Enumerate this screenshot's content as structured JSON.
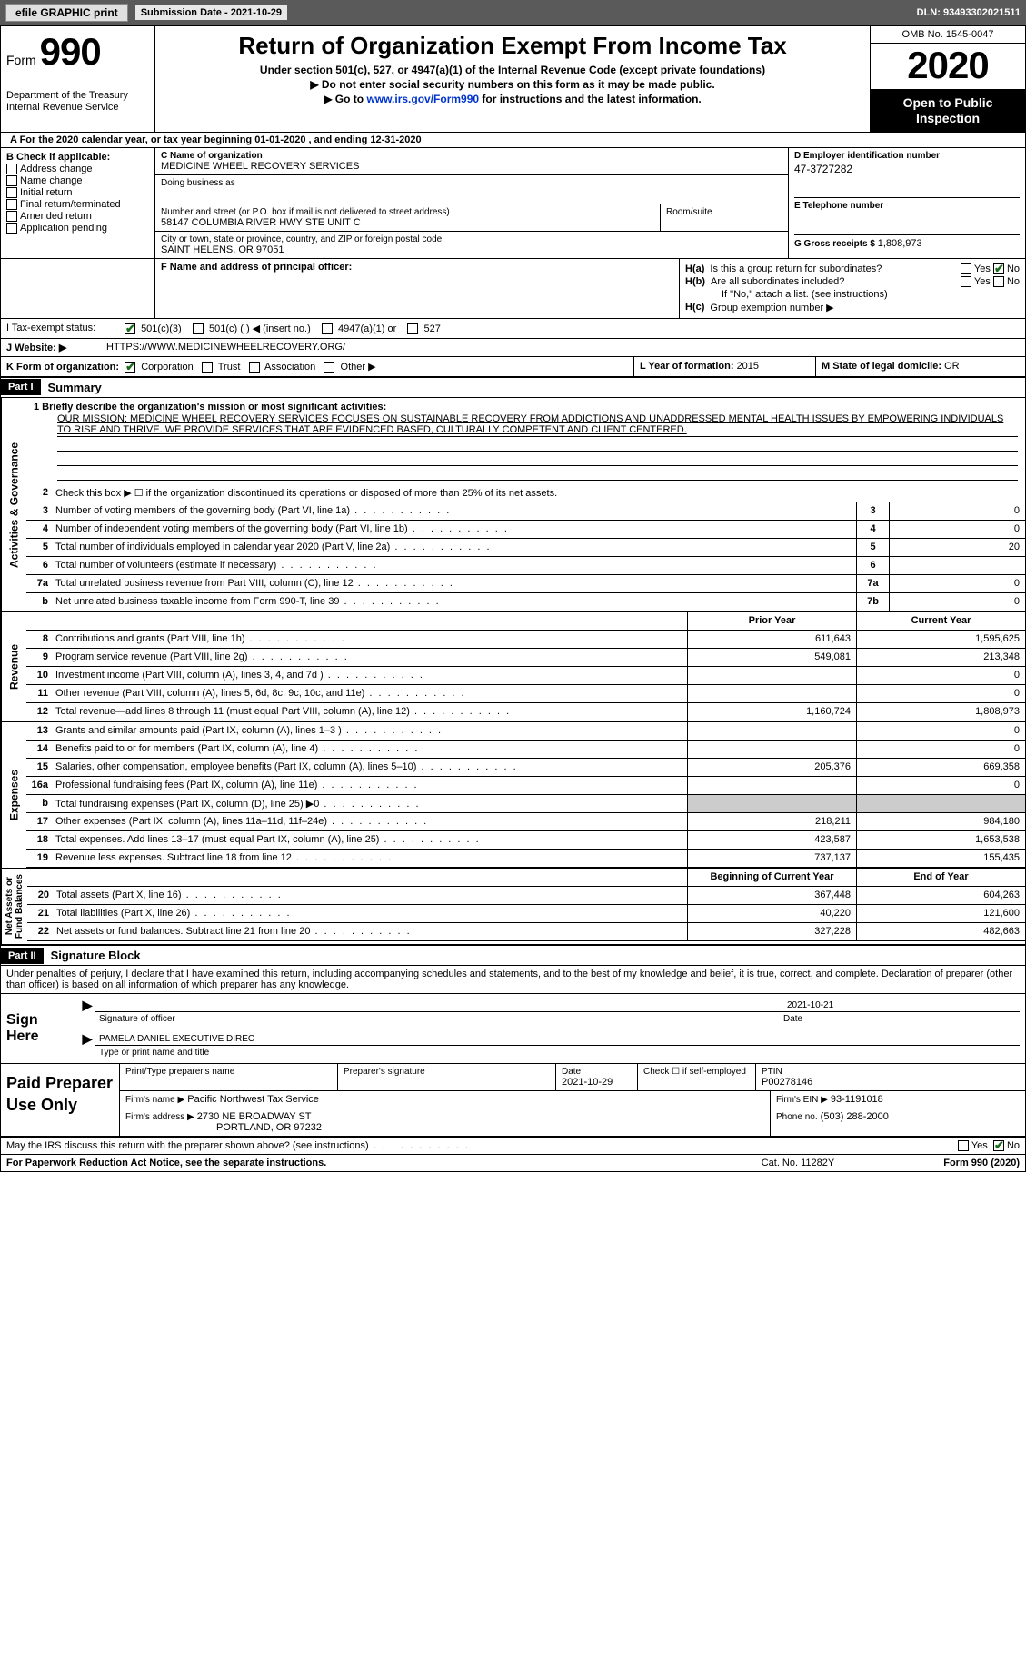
{
  "topbar": {
    "efile_btn": "efile GRAPHIC print",
    "sub_date_label": "Submission Date - ",
    "sub_date": "2021-10-29",
    "dln_label": "DLN: ",
    "dln": "93493302021511"
  },
  "header": {
    "form_word": "Form",
    "form_num": "990",
    "dept": "Department of the Treasury\nInternal Revenue Service",
    "title": "Return of Organization Exempt From Income Tax",
    "sub1": "Under section 501(c), 527, or 4947(a)(1) of the Internal Revenue Code (except private foundations)",
    "sub2": "▶ Do not enter social security numbers on this form as it may be made public.",
    "sub3_pre": "▶ Go to ",
    "sub3_link": "www.irs.gov/Form990",
    "sub3_post": " for instructions and the latest information.",
    "omb": "OMB No. 1545-0047",
    "year": "2020",
    "open": "Open to Public Inspection"
  },
  "lineA": "A For the 2020 calendar year, or tax year beginning 01-01-2020   , and ending 12-31-2020",
  "boxB": {
    "title": "B Check if applicable:",
    "items": [
      "Address change",
      "Name change",
      "Initial return",
      "Final return/terminated",
      "Amended return",
      "Application pending"
    ]
  },
  "boxC": {
    "name_lbl": "C Name of organization",
    "name": "MEDICINE WHEEL RECOVERY SERVICES",
    "dba_lbl": "Doing business as",
    "dba": "",
    "addr_lbl": "Number and street (or P.O. box if mail is not delivered to street address)",
    "addr": "58147 COLUMBIA RIVER HWY STE UNIT C",
    "suite_lbl": "Room/suite",
    "city_lbl": "City or town, state or province, country, and ZIP or foreign postal code",
    "city": "SAINT HELENS, OR   97051"
  },
  "boxD": {
    "lbl": "D Employer identification number",
    "val": "47-3727282"
  },
  "boxE": {
    "lbl": "E Telephone number",
    "val": ""
  },
  "boxG": {
    "lbl": "G Gross receipts $ ",
    "val": "1,808,973"
  },
  "boxF": {
    "lbl": "F  Name and address of principal officer:",
    "val": ""
  },
  "boxH": {
    "a": "Is this a group return for subordinates?",
    "b": "Are all subordinates included?",
    "b_note": "If \"No,\" attach a list. (see instructions)",
    "c": "Group exemption number ▶",
    "ha": "H(a)",
    "hb": "H(b)",
    "hc": "H(c)",
    "yes": "Yes",
    "no": "No"
  },
  "boxI": {
    "lbl": "I  Tax-exempt status:",
    "opts": [
      "501(c)(3)",
      "501(c) (  ) ◀ (insert no.)",
      "4947(a)(1) or",
      "527"
    ]
  },
  "boxJ": {
    "lbl": "J  Website: ▶",
    "val": "HTTPS://WWW.MEDICINEWHEELRECOVERY.ORG/"
  },
  "boxK": {
    "lbl": "K Form of organization:",
    "opts": [
      "Corporation",
      "Trust",
      "Association",
      "Other ▶"
    ]
  },
  "boxL": {
    "lbl": "L Year of formation: ",
    "val": "2015"
  },
  "boxM": {
    "lbl": "M State of legal domicile: ",
    "val": "OR"
  },
  "part1": {
    "hdr": "Part I",
    "title": "Summary"
  },
  "mission": {
    "q": "1  Briefly describe the organization's mission or most significant activities:",
    "text": "OUR MISSION: MEDICINE WHEEL RECOVERY SERVICES FOCUSES ON SUSTAINABLE RECOVERY FROM ADDICTIONS AND UNADDRESSED MENTAL HEALTH ISSUES BY EMPOWERING INDIVIDUALS TO RISE AND THRIVE. WE PROVIDE SERVICES THAT ARE EVIDENCED BASED, CULTURALLY COMPETENT AND CLIENT CENTERED."
  },
  "gov_lines": [
    {
      "n": "2",
      "t": "Check this box ▶ ☐  if the organization discontinued its operations or disposed of more than 25% of its net assets.",
      "box": "",
      "v": ""
    },
    {
      "n": "3",
      "t": "Number of voting members of the governing body (Part VI, line 1a)",
      "box": "3",
      "v": "0"
    },
    {
      "n": "4",
      "t": "Number of independent voting members of the governing body (Part VI, line 1b)",
      "box": "4",
      "v": "0"
    },
    {
      "n": "5",
      "t": "Total number of individuals employed in calendar year 2020 (Part V, line 2a)",
      "box": "5",
      "v": "20"
    },
    {
      "n": "6",
      "t": "Total number of volunteers (estimate if necessary)",
      "box": "6",
      "v": ""
    },
    {
      "n": "7a",
      "t": "Total unrelated business revenue from Part VIII, column (C), line 12",
      "box": "7a",
      "v": "0"
    },
    {
      "n": "b",
      "t": "Net unrelated business taxable income from Form 990-T, line 39",
      "box": "7b",
      "v": "0"
    }
  ],
  "col_headers": {
    "prior": "Prior Year",
    "curr": "Current Year",
    "beg": "Beginning of Current Year",
    "end": "End of Year"
  },
  "revenue": [
    {
      "n": "8",
      "t": "Contributions and grants (Part VIII, line 1h)",
      "p": "611,643",
      "c": "1,595,625"
    },
    {
      "n": "9",
      "t": "Program service revenue (Part VIII, line 2g)",
      "p": "549,081",
      "c": "213,348"
    },
    {
      "n": "10",
      "t": "Investment income (Part VIII, column (A), lines 3, 4, and 7d )",
      "p": "",
      "c": "0"
    },
    {
      "n": "11",
      "t": "Other revenue (Part VIII, column (A), lines 5, 6d, 8c, 9c, 10c, and 11e)",
      "p": "",
      "c": "0"
    },
    {
      "n": "12",
      "t": "Total revenue—add lines 8 through 11 (must equal Part VIII, column (A), line 12)",
      "p": "1,160,724",
      "c": "1,808,973"
    }
  ],
  "expenses": [
    {
      "n": "13",
      "t": "Grants and similar amounts paid (Part IX, column (A), lines 1–3 )",
      "p": "",
      "c": "0"
    },
    {
      "n": "14",
      "t": "Benefits paid to or for members (Part IX, column (A), line 4)",
      "p": "",
      "c": "0"
    },
    {
      "n": "15",
      "t": "Salaries, other compensation, employee benefits (Part IX, column (A), lines 5–10)",
      "p": "205,376",
      "c": "669,358"
    },
    {
      "n": "16a",
      "t": "Professional fundraising fees (Part IX, column (A), line 11e)",
      "p": "",
      "c": "0"
    },
    {
      "n": "b",
      "t": "Total fundraising expenses (Part IX, column (D), line 25) ▶0",
      "p": "shaded",
      "c": "shaded"
    },
    {
      "n": "17",
      "t": "Other expenses (Part IX, column (A), lines 11a–11d, 11f–24e)",
      "p": "218,211",
      "c": "984,180"
    },
    {
      "n": "18",
      "t": "Total expenses. Add lines 13–17 (must equal Part IX, column (A), line 25)",
      "p": "423,587",
      "c": "1,653,538"
    },
    {
      "n": "19",
      "t": "Revenue less expenses. Subtract line 18 from line 12",
      "p": "737,137",
      "c": "155,435"
    }
  ],
  "netassets": [
    {
      "n": "20",
      "t": "Total assets (Part X, line 16)",
      "p": "367,448",
      "c": "604,263"
    },
    {
      "n": "21",
      "t": "Total liabilities (Part X, line 26)",
      "p": "40,220",
      "c": "121,600"
    },
    {
      "n": "22",
      "t": "Net assets or fund balances. Subtract line 21 from line 20",
      "p": "327,228",
      "c": "482,663"
    }
  ],
  "vert": {
    "gov": "Activities & Governance",
    "rev": "Revenue",
    "exp": "Expenses",
    "na": "Net Assets or\nFund Balances"
  },
  "part2": {
    "hdr": "Part II",
    "title": "Signature Block",
    "decl": "Under penalties of perjury, I declare that I have examined this return, including accompanying schedules and statements, and to the best of my knowledge and belief, it is true, correct, and complete. Declaration of preparer (other than officer) is based on all information of which preparer has any knowledge."
  },
  "sign": {
    "here": "Sign Here",
    "sig_lbl": "Signature of officer",
    "date_lbl": "Date",
    "date": "2021-10-21",
    "name": "PAMELA DANIEL  EXECUTIVE DIREC",
    "name_lbl": "Type or print name and title"
  },
  "prep": {
    "here": "Paid Preparer Use Only",
    "r1": {
      "a": "Print/Type preparer's name",
      "b": "Preparer's signature",
      "c": "Date",
      "cd": "2021-10-29",
      "d": "Check ☐  if self-employed",
      "e": "PTIN",
      "ev": "P00278146"
    },
    "r2": {
      "a": "Firm's name    ▶",
      "av": "Pacific Northwest Tax Service",
      "b": "Firm's EIN ▶",
      "bv": "93-1191018"
    },
    "r3": {
      "a": "Firm's address ▶",
      "av": "2730 NE BROADWAY ST",
      "av2": "PORTLAND, OR  97232",
      "b": "Phone no.",
      "bv": "(503) 288-2000"
    }
  },
  "discuss": {
    "t": "May the IRS discuss this return with the preparer shown above? (see instructions)",
    "yes": "Yes",
    "no": "No"
  },
  "footer": {
    "l": "For Paperwork Reduction Act Notice, see the separate instructions.",
    "c": "Cat. No. 11282Y",
    "r": "Form 990 (2020)"
  }
}
